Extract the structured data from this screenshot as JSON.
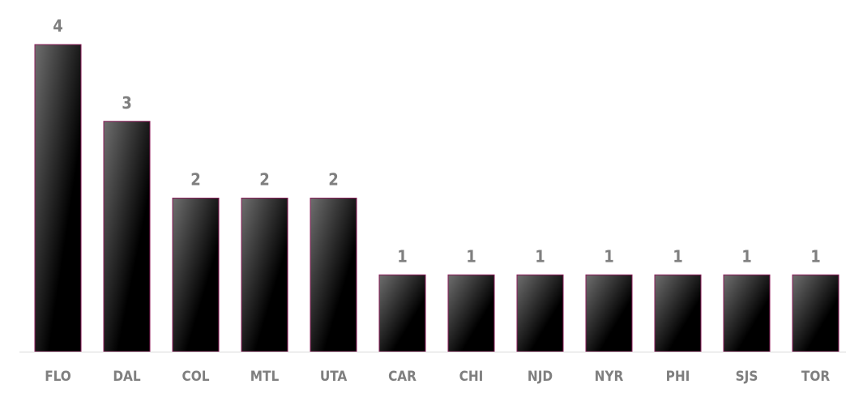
{
  "chart_data": {
    "type": "bar",
    "categories": [
      "FLO",
      "DAL",
      "COL",
      "MTL",
      "UTA",
      "CAR",
      "CHI",
      "NJD",
      "NYR",
      "PHI",
      "SJS",
      "TOR"
    ],
    "values": [
      4,
      3,
      2,
      2,
      2,
      1,
      1,
      1,
      1,
      1,
      1,
      1
    ],
    "title": "",
    "xlabel": "",
    "ylabel": "",
    "ylim": [
      0,
      4
    ],
    "grid": false,
    "legend": "none",
    "colors": {
      "bar_top": "#6e6e6e",
      "bar_bottom": "#000000",
      "bar_stroke": "#8b1d5a",
      "axis": "#d9d9d9",
      "label": "#7f7f7f"
    }
  }
}
